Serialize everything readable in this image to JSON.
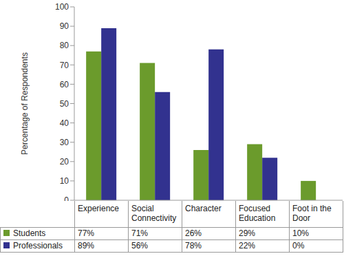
{
  "chart_data": {
    "type": "bar",
    "ylabel": "Percentage of Respondents",
    "categories": [
      "Experience",
      "Social Connectivity",
      "Character",
      "Focused Education",
      "Foot in the Door"
    ],
    "series": [
      {
        "name": "Students",
        "color": "#6b9b2c",
        "values": [
          77,
          71,
          26,
          29,
          10
        ],
        "value_labels": [
          "77%",
          "71%",
          "26%",
          "29%",
          "10%"
        ]
      },
      {
        "name": "Professionals",
        "color": "#32328f",
        "values": [
          89,
          56,
          78,
          22,
          0
        ],
        "value_labels": [
          "89%",
          "56%",
          "78%",
          "22%",
          "0%"
        ]
      }
    ],
    "ylim": [
      0,
      100
    ],
    "yticks": [
      0,
      10,
      20,
      30,
      40,
      50,
      60,
      70,
      80,
      90,
      100
    ],
    "grid": false
  }
}
